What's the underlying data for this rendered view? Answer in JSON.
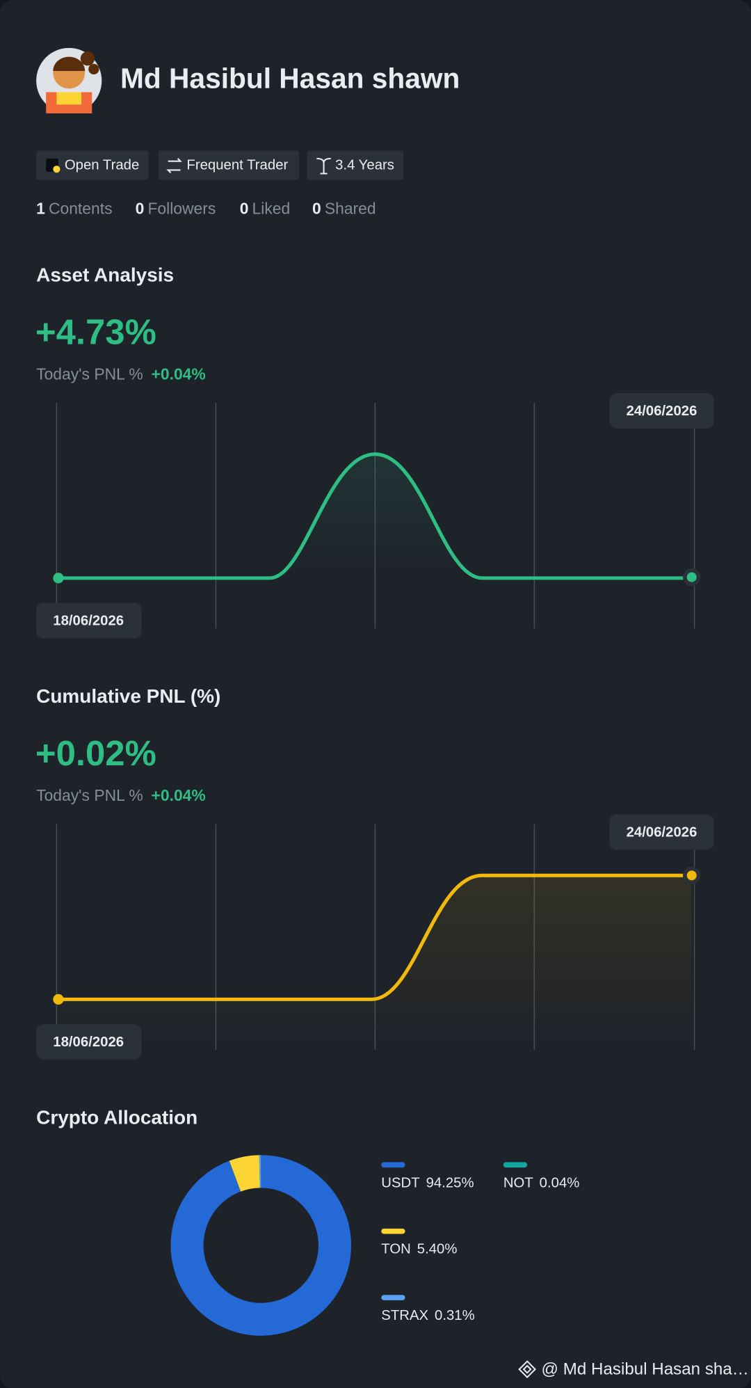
{
  "profile": {
    "name": "Md Hasibul Hasan shawn",
    "badges": [
      "Open Trade",
      "Frequent Trader",
      "3.4 Years"
    ],
    "stats": [
      {
        "count": "1",
        "label": "Contents"
      },
      {
        "count": "0",
        "label": "Followers"
      },
      {
        "count": "0",
        "label": "Liked"
      },
      {
        "count": "0",
        "label": "Shared"
      }
    ]
  },
  "asset_analysis": {
    "title": "Asset Analysis",
    "value": "+4.73%",
    "today_label": "Today's PNL %",
    "today_value": "+0.04%",
    "start_date": "18/06/2026",
    "end_date": "24/06/2026"
  },
  "cumulative_pnl": {
    "title": "Cumulative PNL (%)",
    "value": "+0.02%",
    "today_label": "Today's PNL %",
    "today_value": "+0.04%",
    "start_date": "18/06/2026",
    "end_date": "24/06/2026"
  },
  "chart_data": {
    "type": "pie",
    "donut": true,
    "title": "Crypto Allocation",
    "categories": [
      "USDT",
      "NOT",
      "TON",
      "STRAX"
    ],
    "values": [
      94.25,
      0.04,
      5.4,
      0.31
    ],
    "value_labels": [
      "94.25%",
      "0.04%",
      "5.40%",
      "0.31%"
    ],
    "colors": [
      "#2469d6",
      "#13a59f",
      "#fcd535",
      "#5aa2f2"
    ]
  },
  "footer": {
    "watermark": "@ Md Hasibul Hasan sha…"
  }
}
